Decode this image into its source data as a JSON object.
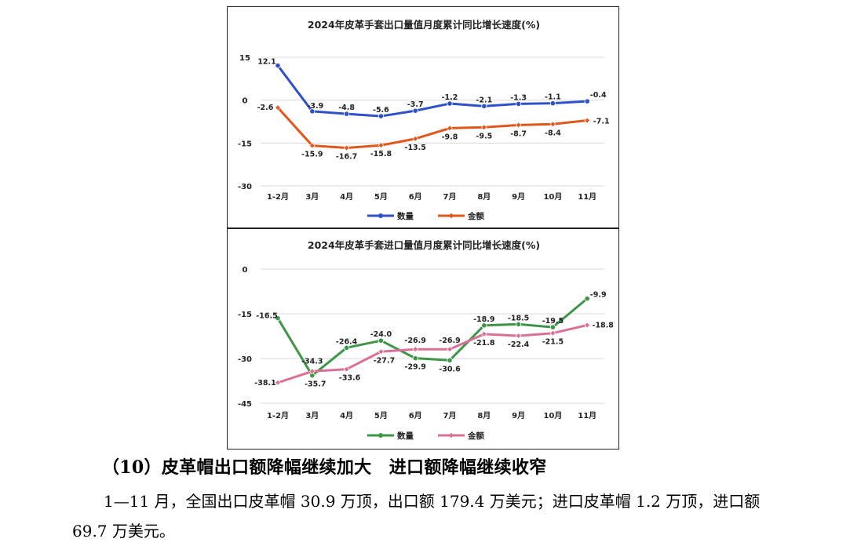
{
  "charts": [
    {
      "id": "export",
      "title": "2024年皮革手套出口量值月度累计同比增长速度(%)",
      "type": "line",
      "categories": [
        "1-2月",
        "3月",
        "4月",
        "5月",
        "6月",
        "7月",
        "8月",
        "9月",
        "10月",
        "11月"
      ],
      "yticks": [
        15,
        0,
        -15,
        -30
      ],
      "ylim": [
        -30,
        15
      ],
      "series": [
        {
          "name": "数量",
          "color": "#2E50C8",
          "values": [
            12.1,
            -3.9,
            -4.8,
            -5.6,
            -3.7,
            -1.2,
            -2.1,
            -1.3,
            -1.1,
            -0.4
          ]
        },
        {
          "name": "金额",
          "color": "#E0561B",
          "values": [
            -2.6,
            -15.9,
            -16.7,
            -15.8,
            -13.5,
            -9.8,
            -9.5,
            -8.7,
            -8.4,
            -7.1
          ]
        }
      ]
    },
    {
      "id": "import",
      "title": "2024年皮革手套进口量值月度累计同比增长速度(%)",
      "type": "line",
      "categories": [
        "1-2月",
        "3月",
        "4月",
        "5月",
        "6月",
        "7月",
        "8月",
        "9月",
        "10月",
        "11月"
      ],
      "yticks": [
        0,
        -15,
        -30,
        -45
      ],
      "ylim": [
        -45,
        0
      ],
      "series": [
        {
          "name": "数量",
          "color": "#3E9647",
          "values": [
            -16.5,
            -35.7,
            -26.4,
            -24.0,
            -29.9,
            -30.6,
            -18.9,
            -18.5,
            -19.5,
            -9.9
          ]
        },
        {
          "name": "金额",
          "color": "#D97096",
          "values": [
            -38.1,
            -34.3,
            -33.6,
            -27.7,
            -26.9,
            -26.9,
            -21.8,
            -22.4,
            -21.5,
            -18.8
          ]
        }
      ]
    }
  ],
  "chart_data": [
    {
      "type": "line",
      "title": "2024年皮革手套出口量值月度累计同比增长速度(%)",
      "categories": [
        "1-2月",
        "3月",
        "4月",
        "5月",
        "6月",
        "7月",
        "8月",
        "9月",
        "10月",
        "11月"
      ],
      "series": [
        {
          "name": "数量",
          "values": [
            12.1,
            -3.9,
            -4.8,
            -5.6,
            -3.7,
            -1.2,
            -2.1,
            -1.3,
            -1.1,
            -0.4
          ]
        },
        {
          "name": "金额",
          "values": [
            -2.6,
            -15.9,
            -16.7,
            -15.8,
            -13.5,
            -9.8,
            -9.5,
            -8.7,
            -8.4,
            -7.1
          ]
        }
      ],
      "ylim": [
        -30,
        15
      ],
      "grid": true,
      "legend": "bottom"
    },
    {
      "type": "line",
      "title": "2024年皮革手套进口量值月度累计同比增长速度(%)",
      "categories": [
        "1-2月",
        "3月",
        "4月",
        "5月",
        "6月",
        "7月",
        "8月",
        "9月",
        "10月",
        "11月"
      ],
      "series": [
        {
          "name": "数量",
          "values": [
            -16.5,
            -35.7,
            -26.4,
            -24.0,
            -29.9,
            -30.6,
            -18.9,
            -18.5,
            -19.5,
            -9.9
          ]
        },
        {
          "name": "金额",
          "values": [
            -38.1,
            -34.3,
            -33.6,
            -27.7,
            -26.9,
            -26.9,
            -21.8,
            -22.4,
            -21.5,
            -18.8
          ]
        }
      ],
      "ylim": [
        -45,
        0
      ],
      "grid": true,
      "legend": "bottom"
    }
  ],
  "text": {
    "heading": "（10）皮革帽出口额降幅继续加大　进口额降幅继续收窄",
    "paragraph": "1—11 月，全国出口皮革帽 30.9 万顶，出口额 179.4 万美元；进口皮革帽 1.2 万顶，进口额 69.7 万美元。"
  }
}
